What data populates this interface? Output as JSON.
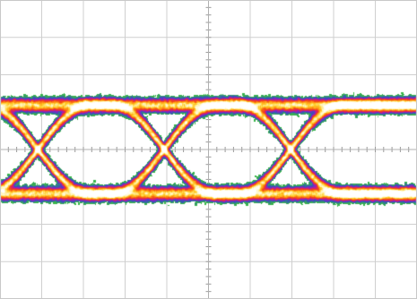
{
  "chart_data": {
    "type": "heatmap",
    "title": "",
    "xlabel": "",
    "ylabel": "",
    "grid": true,
    "grid_divisions": {
      "x": 10,
      "y": 8
    },
    "minor_ticks_per_division": 5,
    "x_unit_intervals": [
      0,
      3.3
    ],
    "y_levels": {
      "logic_high": 1,
      "logic_low": -1
    },
    "crossing_points_ui": [
      0.3,
      1.3,
      2.3
    ],
    "eye_opening": {
      "width_ui": 0.66,
      "height_norm": 1.35
    },
    "density_colormap": [
      "#f2f2f2",
      "#39b54a",
      "#3056b8",
      "#8a22c8",
      "#e41f5a",
      "#f04a14",
      "#ff8c10",
      "#ffcf2a",
      "#fff6c0",
      "#ffffff"
    ]
  }
}
